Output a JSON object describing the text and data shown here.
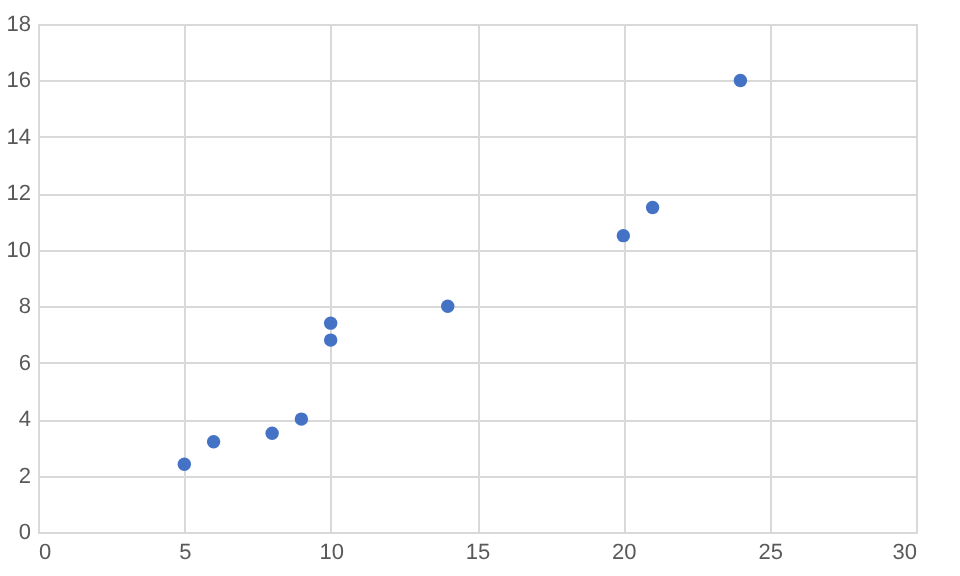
{
  "chart_data": {
    "type": "scatter",
    "x": [
      5,
      6,
      8,
      9,
      10,
      10,
      14,
      20,
      21,
      24
    ],
    "series": [
      {
        "color": "#4472c4",
        "values": [
          2.4,
          3.2,
          3.5,
          4,
          6.8,
          7.4,
          8,
          10.5,
          11.5,
          16
        ]
      }
    ],
    "xlim": [
      0,
      30
    ],
    "xticks": [
      0,
      5,
      10,
      15,
      20,
      25,
      30
    ],
    "ylim": [
      0,
      18
    ],
    "yticks": [
      0,
      2,
      4,
      6,
      8,
      10,
      12,
      14,
      16,
      18
    ],
    "grid": true,
    "marker": "circle"
  }
}
